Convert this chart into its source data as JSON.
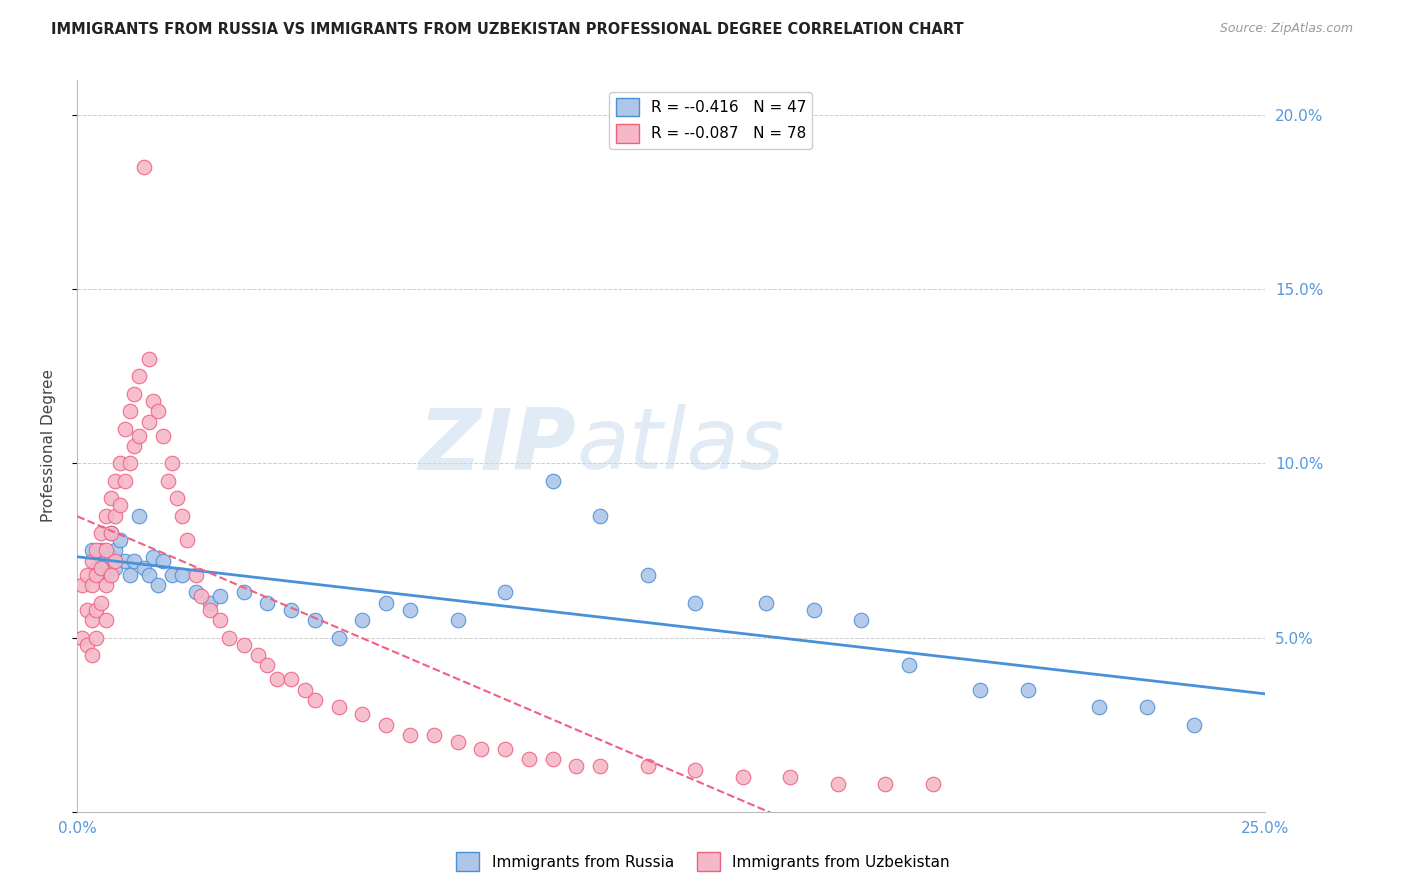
{
  "title": "IMMIGRANTS FROM RUSSIA VS IMMIGRANTS FROM UZBEKISTAN PROFESSIONAL DEGREE CORRELATION CHART",
  "source": "Source: ZipAtlas.com",
  "ylabel": "Professional Degree",
  "xlim": [
    0,
    0.25
  ],
  "ylim": [
    0,
    0.21
  ],
  "russia_color": "#aec6e8",
  "uzbekistan_color": "#f4b8c8",
  "russia_line_color": "#4a90d9",
  "uzbekistan_line_color": "#f06080",
  "watermark_zip": "ZIP",
  "watermark_atlas": "atlas",
  "legend_r_russia": "-0.416",
  "legend_n_russia": "47",
  "legend_r_uzbekistan": "-0.087",
  "legend_n_uzbekistan": "78",
  "russia_scatter_x": [
    0.003,
    0.004,
    0.005,
    0.006,
    0.006,
    0.007,
    0.007,
    0.008,
    0.008,
    0.009,
    0.01,
    0.011,
    0.012,
    0.013,
    0.014,
    0.015,
    0.016,
    0.017,
    0.018,
    0.02,
    0.022,
    0.025,
    0.028,
    0.03,
    0.035,
    0.04,
    0.045,
    0.05,
    0.055,
    0.06,
    0.065,
    0.07,
    0.08,
    0.09,
    0.1,
    0.11,
    0.12,
    0.13,
    0.145,
    0.155,
    0.165,
    0.175,
    0.19,
    0.2,
    0.215,
    0.225,
    0.235
  ],
  "russia_scatter_y": [
    0.075,
    0.07,
    0.075,
    0.072,
    0.068,
    0.08,
    0.073,
    0.07,
    0.075,
    0.078,
    0.072,
    0.068,
    0.072,
    0.085,
    0.07,
    0.068,
    0.073,
    0.065,
    0.072,
    0.068,
    0.068,
    0.063,
    0.06,
    0.062,
    0.063,
    0.06,
    0.058,
    0.055,
    0.05,
    0.055,
    0.06,
    0.058,
    0.055,
    0.063,
    0.095,
    0.085,
    0.068,
    0.06,
    0.06,
    0.058,
    0.055,
    0.042,
    0.035,
    0.035,
    0.03,
    0.03,
    0.025
  ],
  "uzbekistan_scatter_x": [
    0.001,
    0.001,
    0.002,
    0.002,
    0.002,
    0.003,
    0.003,
    0.003,
    0.003,
    0.004,
    0.004,
    0.004,
    0.004,
    0.005,
    0.005,
    0.005,
    0.006,
    0.006,
    0.006,
    0.006,
    0.007,
    0.007,
    0.007,
    0.008,
    0.008,
    0.008,
    0.009,
    0.009,
    0.01,
    0.01,
    0.011,
    0.011,
    0.012,
    0.012,
    0.013,
    0.013,
    0.014,
    0.015,
    0.015,
    0.016,
    0.017,
    0.018,
    0.019,
    0.02,
    0.021,
    0.022,
    0.023,
    0.025,
    0.026,
    0.028,
    0.03,
    0.032,
    0.035,
    0.038,
    0.04,
    0.042,
    0.045,
    0.048,
    0.05,
    0.055,
    0.06,
    0.065,
    0.07,
    0.075,
    0.08,
    0.085,
    0.09,
    0.095,
    0.1,
    0.105,
    0.11,
    0.12,
    0.13,
    0.14,
    0.15,
    0.16,
    0.17,
    0.18
  ],
  "uzbekistan_scatter_y": [
    0.065,
    0.05,
    0.068,
    0.058,
    0.048,
    0.072,
    0.065,
    0.055,
    0.045,
    0.075,
    0.068,
    0.058,
    0.05,
    0.08,
    0.07,
    0.06,
    0.085,
    0.075,
    0.065,
    0.055,
    0.09,
    0.08,
    0.068,
    0.095,
    0.085,
    0.072,
    0.1,
    0.088,
    0.11,
    0.095,
    0.115,
    0.1,
    0.12,
    0.105,
    0.125,
    0.108,
    0.185,
    0.13,
    0.112,
    0.118,
    0.115,
    0.108,
    0.095,
    0.1,
    0.09,
    0.085,
    0.078,
    0.068,
    0.062,
    0.058,
    0.055,
    0.05,
    0.048,
    0.045,
    0.042,
    0.038,
    0.038,
    0.035,
    0.032,
    0.03,
    0.028,
    0.025,
    0.022,
    0.022,
    0.02,
    0.018,
    0.018,
    0.015,
    0.015,
    0.013,
    0.013,
    0.013,
    0.012,
    0.01,
    0.01,
    0.008,
    0.008,
    0.008
  ]
}
